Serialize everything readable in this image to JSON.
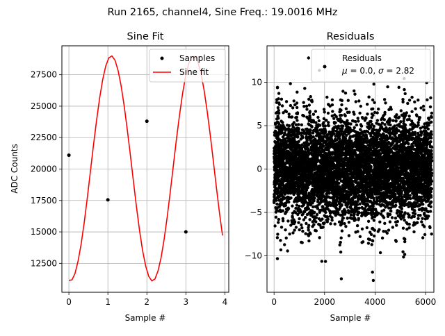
{
  "figure": {
    "suptitle": "Run 2165, channel4, Sine Freq.: 19.0016 MHz"
  },
  "chart_data": [
    {
      "type": "line",
      "title": "Sine Fit",
      "xlabel": "Sample #",
      "ylabel": "ADC Counts",
      "xlim": [
        -0.18,
        4.1
      ],
      "ylim": [
        10200,
        29800
      ],
      "xticks": [
        0,
        1,
        2,
        3,
        4
      ],
      "yticks": [
        12500,
        15000,
        17500,
        20000,
        22500,
        25000,
        27500
      ],
      "grid": true,
      "legend_position": "upper-right",
      "series": [
        {
          "name": "Samples",
          "kind": "scatter",
          "color": "#000000",
          "x": [
            0,
            1,
            2,
            3
          ],
          "y": [
            21100,
            17550,
            23800,
            15000
          ]
        },
        {
          "name": "Sine fit",
          "kind": "line",
          "color": "#ff0000",
          "model": {
            "offset": 20050,
            "amplitude": 8950,
            "frequency_cycles_per_sample": 0.474,
            "phase_deg": 174.25
          },
          "x_range": [
            0,
            3.94
          ]
        }
      ]
    },
    {
      "type": "scatter",
      "title": "Residuals",
      "xlabel": "Sample #",
      "ylabel": "",
      "xlim": [
        -280,
        6330
      ],
      "ylim": [
        -14.2,
        14.2
      ],
      "xticks": [
        0,
        2000,
        4000,
        6000
      ],
      "yticks": [
        -10,
        -5,
        0,
        5,
        10
      ],
      "grid": true,
      "legend_position": "upper-right",
      "series": [
        {
          "name": "Residuals",
          "color": "#000000",
          "n_points": 6250,
          "mean": 0.0,
          "std": 2.82
        }
      ],
      "legend_stats_prefix": "μ = 0.0, σ = 2.82",
      "legend_mu": "μ",
      "legend_mu_eq": " = 0.0, ",
      "legend_sigma": "σ",
      "legend_sigma_eq": " = 2.82"
    }
  ]
}
